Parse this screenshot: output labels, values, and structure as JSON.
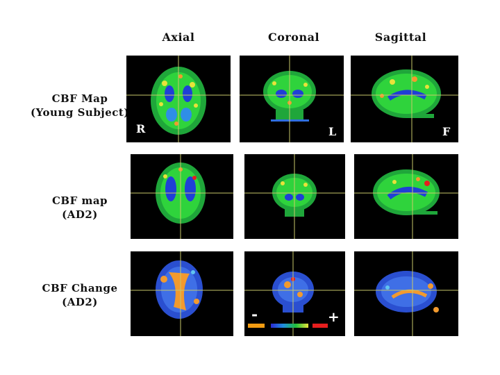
{
  "columns": [
    "Axial",
    "Coronal",
    "Sagittal"
  ],
  "rows": [
    {
      "line1": "CBF Map",
      "line2": "(Young Subject)"
    },
    {
      "line1": "CBF map",
      "line2": "(AD2)"
    },
    {
      "line1": "CBF Change",
      "line2": "(AD2)"
    }
  ],
  "orientation_labels": {
    "right": "R",
    "left": "L",
    "front": "F"
  },
  "colorbar": {
    "minus": "-",
    "plus": "+",
    "colors": [
      "#f39c12",
      "#2b2bd6",
      "#1fbf3a",
      "#e61e1e"
    ]
  },
  "colors": {
    "background": "#000000",
    "crosshair": "#c8c86a"
  }
}
